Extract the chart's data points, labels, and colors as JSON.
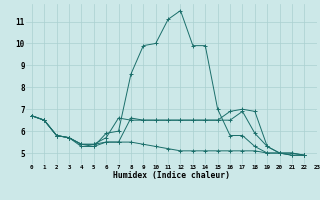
{
  "xlabel": "Humidex (Indice chaleur)",
  "bg_color": "#cce8e8",
  "grid_color": "#aad0d0",
  "line_color": "#1a6e6a",
  "xlim": [
    -0.5,
    23
  ],
  "ylim": [
    4.5,
    11.8
  ],
  "xticks": [
    0,
    1,
    2,
    3,
    4,
    5,
    6,
    7,
    8,
    9,
    10,
    11,
    12,
    13,
    14,
    15,
    16,
    17,
    18,
    19,
    20,
    21,
    22,
    23
  ],
  "yticks": [
    5,
    6,
    7,
    8,
    9,
    10,
    11
  ],
  "series": [
    {
      "x": [
        0,
        1,
        2,
        3,
        4,
        5,
        6,
        7,
        8,
        9,
        10,
        11,
        12,
        13,
        14,
        15,
        16,
        17,
        18,
        19,
        20,
        21,
        22
      ],
      "y": [
        6.7,
        6.5,
        5.8,
        5.7,
        5.4,
        5.3,
        5.5,
        5.5,
        6.6,
        6.5,
        6.5,
        6.5,
        6.5,
        6.5,
        6.5,
        6.5,
        6.5,
        6.9,
        5.9,
        5.3,
        5.0,
        5.0,
        4.9
      ]
    },
    {
      "x": [
        0,
        1,
        2,
        3,
        4,
        5,
        6,
        7,
        8,
        9,
        10,
        11,
        12,
        13,
        14,
        15,
        16,
        17,
        18,
        19,
        20,
        21,
        22
      ],
      "y": [
        6.7,
        6.5,
        5.8,
        5.7,
        5.3,
        5.3,
        5.9,
        6.0,
        8.6,
        9.9,
        10.0,
        11.1,
        11.5,
        9.9,
        9.9,
        7.0,
        5.8,
        5.8,
        5.3,
        5.0,
        5.0,
        4.9,
        4.9
      ]
    },
    {
      "x": [
        0,
        1,
        2,
        3,
        4,
        5,
        6,
        7,
        8,
        9,
        10,
        11,
        12,
        13,
        14,
        15,
        16,
        17,
        18,
        19,
        20,
        21,
        22
      ],
      "y": [
        6.7,
        6.5,
        5.8,
        5.7,
        5.4,
        5.4,
        5.7,
        6.6,
        6.5,
        6.5,
        6.5,
        6.5,
        6.5,
        6.5,
        6.5,
        6.5,
        6.9,
        7.0,
        6.9,
        5.3,
        5.0,
        5.0,
        4.9
      ]
    },
    {
      "x": [
        0,
        1,
        2,
        3,
        4,
        5,
        6,
        7,
        8,
        9,
        10,
        11,
        12,
        13,
        14,
        15,
        16,
        17,
        18,
        19,
        20,
        21,
        22
      ],
      "y": [
        6.7,
        6.5,
        5.8,
        5.7,
        5.4,
        5.4,
        5.5,
        5.5,
        5.5,
        5.4,
        5.3,
        5.2,
        5.1,
        5.1,
        5.1,
        5.1,
        5.1,
        5.1,
        5.1,
        5.0,
        5.0,
        4.9,
        4.9
      ]
    }
  ]
}
